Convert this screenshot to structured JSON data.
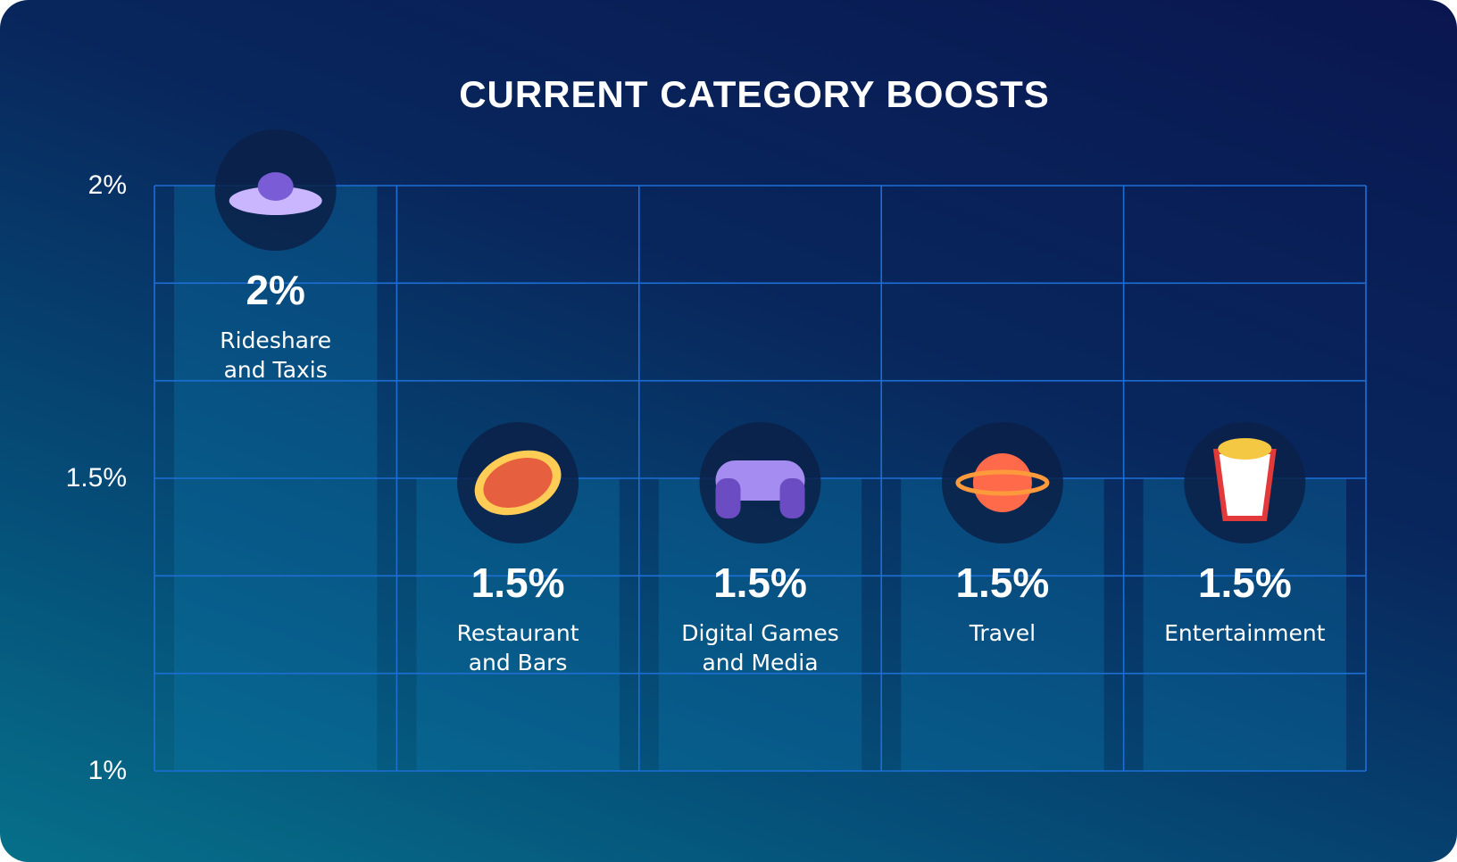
{
  "chart_data": {
    "type": "bar",
    "title": "CURRENT CATEGORY BOOSTS",
    "categories": [
      "Rideshare\nand Taxis",
      "Restaurant\nand Bars",
      "Digital Games\nand Media",
      "Travel",
      "Entertainment"
    ],
    "values": [
      2,
      1.5,
      1.5,
      1.5,
      1.5
    ],
    "value_labels": [
      "2%",
      "1.5%",
      "1.5%",
      "1.5%",
      "1.5%"
    ],
    "color": "#0b78ad",
    "ylim": [
      1,
      2
    ],
    "yticks": [
      {
        "value": 1,
        "label": "1%"
      },
      {
        "value": 1.5,
        "label": "1.5%"
      },
      {
        "value": 2,
        "label": "2%"
      }
    ],
    "grid": true,
    "grid_subdivisions": 3
  }
}
